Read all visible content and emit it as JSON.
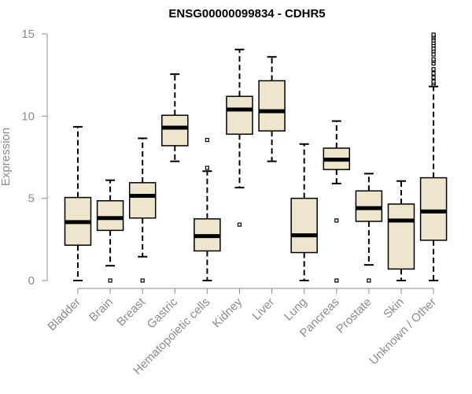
{
  "chart_data": {
    "type": "boxplot",
    "title": "ENSG00000099834 - CDHR5",
    "ylabel": "Expression",
    "xlabel": "",
    "ylim": [
      0,
      15
    ],
    "yticks": [
      0,
      5,
      10,
      15
    ],
    "grid": false,
    "legend": "none",
    "colors": {
      "box_fill": "#ede6cc",
      "stroke": "#000000",
      "axis": "#8c8c8c"
    },
    "categories": [
      "Bladder",
      "Brain",
      "Breast",
      "Gastric",
      "Hematopoietic cells",
      "Kidney",
      "Liver",
      "Lung",
      "Pancreas",
      "Prostate",
      "Skin",
      "Unknown / Other"
    ],
    "boxes": [
      {
        "min": 0.0,
        "q1": 2.15,
        "median": 3.55,
        "q3": 5.05,
        "max": 9.35,
        "outliers": []
      },
      {
        "min": 0.9,
        "q1": 3.05,
        "median": 3.8,
        "q3": 4.85,
        "max": 6.1,
        "outliers": [
          0.0
        ]
      },
      {
        "min": 1.45,
        "q1": 3.8,
        "median": 5.15,
        "q3": 5.95,
        "max": 8.65,
        "outliers": [
          0.0
        ]
      },
      {
        "min": 7.25,
        "q1": 8.2,
        "median": 9.3,
        "q3": 10.05,
        "max": 12.55,
        "outliers": []
      },
      {
        "min": 0.0,
        "q1": 1.8,
        "median": 2.7,
        "q3": 3.75,
        "max": 6.65,
        "outliers": [
          6.85,
          8.55
        ]
      },
      {
        "min": 5.65,
        "q1": 8.9,
        "median": 10.4,
        "q3": 11.2,
        "max": 14.05,
        "outliers": [
          3.4
        ]
      },
      {
        "min": 7.25,
        "q1": 9.1,
        "median": 10.3,
        "q3": 12.15,
        "max": 13.6,
        "outliers": []
      },
      {
        "min": 0.0,
        "q1": 1.7,
        "median": 2.75,
        "q3": 5.0,
        "max": 8.3,
        "outliers": []
      },
      {
        "min": 5.9,
        "q1": 6.75,
        "median": 7.35,
        "q3": 8.05,
        "max": 9.7,
        "outliers": [
          3.65,
          0.0
        ]
      },
      {
        "min": 0.95,
        "q1": 3.6,
        "median": 4.4,
        "q3": 5.45,
        "max": 6.5,
        "outliers": [
          0.0
        ]
      },
      {
        "min": 0.0,
        "q1": 0.7,
        "median": 3.65,
        "q3": 4.65,
        "max": 6.05,
        "outliers": []
      },
      {
        "min": 0.0,
        "q1": 2.45,
        "median": 4.2,
        "q3": 6.25,
        "max": 11.8,
        "outliers": [
          11.9,
          12.0,
          12.1,
          12.35,
          12.6,
          12.85,
          13.2,
          13.35,
          13.45,
          13.75,
          13.95,
          14.1,
          14.3,
          14.45,
          14.6,
          14.75,
          14.85,
          14.95
        ]
      }
    ]
  }
}
